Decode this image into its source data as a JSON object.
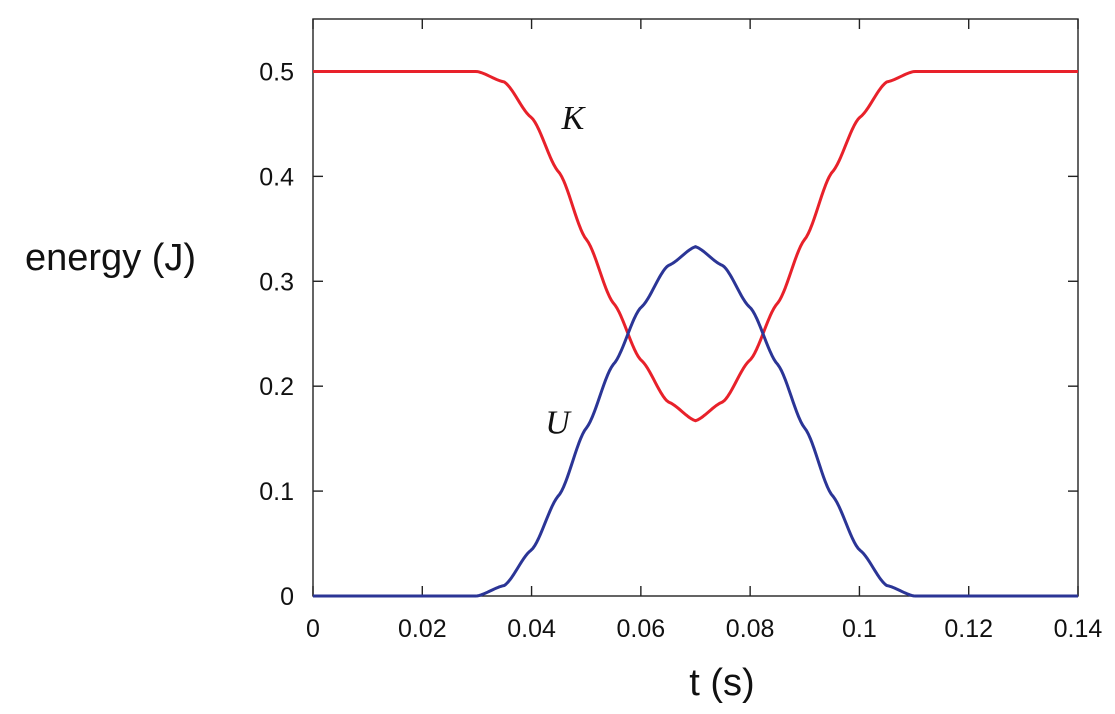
{
  "chart_data": {
    "type": "line",
    "title": "",
    "xlabel": "t (s)",
    "ylabel": "energy (J)",
    "xlim": [
      0,
      0.14
    ],
    "ylim": [
      0,
      0.55
    ],
    "x_ticks": [
      0,
      0.02,
      0.04,
      0.06,
      0.08,
      0.1,
      0.12,
      0.14
    ],
    "x_tick_labels": [
      "0",
      "0.02",
      "0.04",
      "0.06",
      "0.08",
      "0.1",
      "0.12",
      "0.14"
    ],
    "y_ticks": [
      0,
      0.1,
      0.2,
      0.3,
      0.4,
      0.5
    ],
    "y_tick_labels": [
      "0",
      "0.1",
      "0.2",
      "0.3",
      "0.4",
      "0.5"
    ],
    "grid": false,
    "legend": "none",
    "series": [
      {
        "name": "K",
        "color": "#e8212a",
        "x": [
          0,
          0.03,
          0.035,
          0.04,
          0.045,
          0.05,
          0.055,
          0.06,
          0.065,
          0.07,
          0.075,
          0.08,
          0.085,
          0.09,
          0.095,
          0.1,
          0.105,
          0.11,
          0.14
        ],
        "y": [
          0.5,
          0.5,
          0.49,
          0.456,
          0.404,
          0.34,
          0.279,
          0.225,
          0.185,
          0.167,
          0.185,
          0.225,
          0.279,
          0.34,
          0.404,
          0.456,
          0.49,
          0.5,
          0.5
        ]
      },
      {
        "name": "U",
        "color": "#2b3596",
        "x": [
          0,
          0.03,
          0.035,
          0.04,
          0.045,
          0.05,
          0.055,
          0.06,
          0.065,
          0.07,
          0.075,
          0.08,
          0.085,
          0.09,
          0.095,
          0.1,
          0.105,
          0.11,
          0.14
        ],
        "y": [
          0,
          0,
          0.01,
          0.044,
          0.096,
          0.16,
          0.221,
          0.275,
          0.315,
          0.333,
          0.315,
          0.275,
          0.221,
          0.16,
          0.096,
          0.044,
          0.01,
          0,
          0
        ]
      }
    ],
    "annotations": [
      {
        "text": "K",
        "x": 0.0455,
        "y": 0.445
      },
      {
        "text": "U",
        "x": 0.0425,
        "y": 0.155
      }
    ]
  }
}
